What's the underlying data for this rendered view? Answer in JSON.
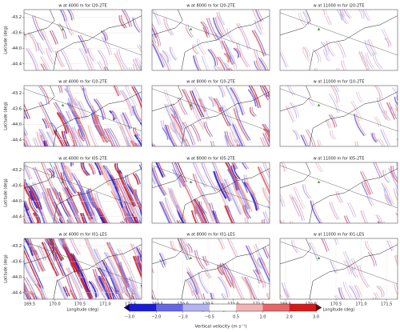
{
  "chart_data": [
    {
      "type": "heatmap",
      "title": "w at 4000 m for I20-2TE",
      "xlim": [
        169.39,
        171.72
      ],
      "ylim": [
        -44.57,
        -43.0
      ],
      "yticks": [
        {
          "value": -43.2,
          "label": "-43.2"
        },
        {
          "value": -43.6,
          "label": "-43.6"
        },
        {
          "value": -44.0,
          "label": "-44.0"
        },
        {
          "value": -44.4,
          "label": "-44.4"
        }
      ],
      "ylabel": "Latitude (deg)"
    },
    {
      "type": "heatmap",
      "title": "w at 8000 m for I20-2TE",
      "xlim": [
        169.39,
        171.72
      ],
      "ylim": [
        -44.57,
        -43.0
      ]
    },
    {
      "type": "heatmap",
      "title": "w at 11000 m for I20-2TE",
      "xlim": [
        169.39,
        171.72
      ],
      "ylim": [
        -44.57,
        -43.0
      ]
    },
    {
      "type": "heatmap",
      "title": "w at 4000 m for I10-2TE",
      "xlim": [
        169.39,
        171.72
      ],
      "ylim": [
        -44.57,
        -43.0
      ],
      "yticks": [
        {
          "value": -43.2,
          "label": "-43.2"
        },
        {
          "value": -43.6,
          "label": "-43.6"
        },
        {
          "value": -44.0,
          "label": "-44.0"
        },
        {
          "value": -44.4,
          "label": "-44.4"
        }
      ],
      "ylabel": "Latitude (deg)"
    },
    {
      "type": "heatmap",
      "title": "w at 8000 m for I10-2TE",
      "xlim": [
        169.39,
        171.72
      ],
      "ylim": [
        -44.57,
        -43.0
      ]
    },
    {
      "type": "heatmap",
      "title": "w at 11000 m for I10-2TE",
      "xlim": [
        169.39,
        171.72
      ],
      "ylim": [
        -44.57,
        -43.0
      ]
    },
    {
      "type": "heatmap",
      "title": "w at 4000 m for I05-2TE",
      "xlim": [
        169.39,
        171.72
      ],
      "ylim": [
        -44.57,
        -43.0
      ],
      "yticks": [
        {
          "value": -43.2,
          "label": "-43.2"
        },
        {
          "value": -43.6,
          "label": "-43.6"
        },
        {
          "value": -44.0,
          "label": "-44.0"
        },
        {
          "value": -44.4,
          "label": "-44.4"
        }
      ],
      "ylabel": "Latitude (deg)"
    },
    {
      "type": "heatmap",
      "title": "w at 8000 m for I05-2TE",
      "xlim": [
        169.39,
        171.72
      ],
      "ylim": [
        -44.57,
        -43.0
      ]
    },
    {
      "type": "heatmap",
      "title": "w at 11000 m for I05-2TE",
      "xlim": [
        169.39,
        171.72
      ],
      "ylim": [
        -44.57,
        -43.0
      ]
    },
    {
      "type": "heatmap",
      "title": "w at 4000 m for I01-LES",
      "xlim": [
        169.39,
        171.72
      ],
      "ylim": [
        -44.57,
        -43.0
      ],
      "yticks": [
        {
          "value": -43.2,
          "label": "-43.2"
        },
        {
          "value": -43.6,
          "label": "-43.6"
        },
        {
          "value": -44.0,
          "label": "-44.0"
        },
        {
          "value": -44.4,
          "label": "-44.4"
        }
      ],
      "ylabel": "Latitude (deg)",
      "xticks": [
        169.5,
        {
          "value": 170.0,
          "label": "170.0"
        },
        170.5,
        {
          "value": 171.0,
          "label": "171.0"
        },
        171.5
      ],
      "xlabel": "Longitude (deg)"
    },
    {
      "type": "heatmap",
      "title": "w at 8000 m for I01-LES",
      "xlim": [
        169.39,
        171.72
      ],
      "ylim": [
        -44.57,
        -43.0
      ],
      "xticks": [
        169.5,
        {
          "value": 170.0,
          "label": "170.0"
        },
        170.5,
        {
          "value": 171.0,
          "label": "171.0"
        },
        171.5
      ],
      "xlabel": "Longitude (deg)"
    },
    {
      "type": "heatmap",
      "title": "w at 11000 m for I01-LES",
      "xlim": [
        169.39,
        171.72
      ],
      "ylim": [
        -44.57,
        -43.0
      ],
      "xticks": [
        169.5,
        {
          "value": 170.0,
          "label": "170.0"
        },
        170.5,
        {
          "value": 171.0,
          "label": "171.0"
        },
        171.5
      ],
      "xlabel": "Longitude (deg)"
    }
  ],
  "colorbar": {
    "label": "Vertical velocity (m s⁻¹)",
    "ticks": [
      {
        "value": -3,
        "label": "−3.0"
      },
      {
        "value": -2,
        "label": "−2.0"
      },
      {
        "value": -1,
        "label": "−1.0"
      },
      {
        "value": -0.5,
        "label": "−0.5"
      },
      {
        "value": 0.5,
        "label": "0.5"
      },
      {
        "value": 1,
        "label": "1.0"
      },
      {
        "value": 2,
        "label": "2.0"
      },
      {
        "value": 3,
        "label": "3.0"
      }
    ],
    "colors": [
      "#1a1ad6",
      "#6666e6",
      "#b3b3f2",
      "#ffffff",
      "#f2b3b3",
      "#e66666",
      "#d61a1a"
    ],
    "under_color": "#00007a",
    "over_color": "#7a0000"
  }
}
